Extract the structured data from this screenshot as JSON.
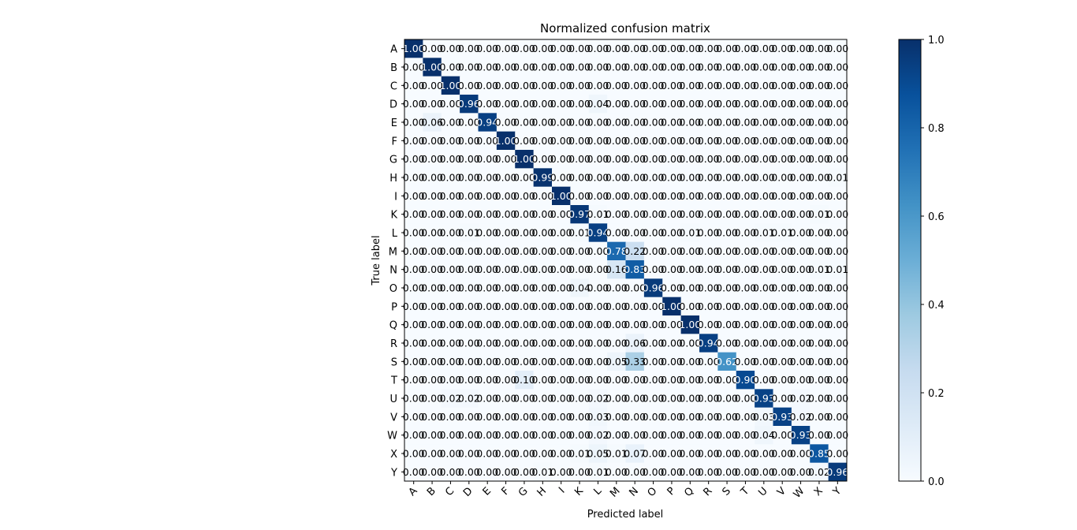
{
  "chart_data": {
    "type": "heatmap",
    "title": "Normalized confusion matrix",
    "xlabel": "Predicted label",
    "ylabel": "True label",
    "x_categories": [
      "A",
      "B",
      "C",
      "D",
      "E",
      "F",
      "G",
      "H",
      "I",
      "K",
      "L",
      "M",
      "N",
      "O",
      "P",
      "Q",
      "R",
      "S",
      "T",
      "U",
      "V",
      "W",
      "X",
      "Y"
    ],
    "y_categories": [
      "A",
      "B",
      "C",
      "D",
      "E",
      "F",
      "G",
      "H",
      "I",
      "K",
      "L",
      "M",
      "N",
      "O",
      "P",
      "Q",
      "R",
      "S",
      "T",
      "U",
      "V",
      "W",
      "X",
      "Y"
    ],
    "value_format": "0.00",
    "colorbar": {
      "min": 0.0,
      "max": 1.0,
      "ticks": [
        "0.0",
        "0.2",
        "0.4",
        "0.6",
        "0.8",
        "1.0"
      ],
      "colormap": "Blues"
    },
    "colors": {
      "low": "#f7fbff",
      "high": "#08306b",
      "text_dark": "#000000",
      "text_light": "#ffffff"
    },
    "values": [
      [
        1.0,
        0.0,
        0.0,
        0.0,
        0.0,
        0.0,
        0.0,
        0.0,
        0.0,
        0.0,
        0.0,
        0.0,
        0.0,
        0.0,
        0.0,
        0.0,
        0.0,
        0.0,
        0.0,
        0.0,
        0.0,
        0.0,
        0.0,
        0.0
      ],
      [
        0.0,
        1.0,
        0.0,
        0.0,
        0.0,
        0.0,
        0.0,
        0.0,
        0.0,
        0.0,
        0.0,
        0.0,
        0.0,
        0.0,
        0.0,
        0.0,
        0.0,
        0.0,
        0.0,
        0.0,
        0.0,
        0.0,
        0.0,
        0.0
      ],
      [
        0.0,
        0.0,
        1.0,
        0.0,
        0.0,
        0.0,
        0.0,
        0.0,
        0.0,
        0.0,
        0.0,
        0.0,
        0.0,
        0.0,
        0.0,
        0.0,
        0.0,
        0.0,
        0.0,
        0.0,
        0.0,
        0.0,
        0.0,
        0.0
      ],
      [
        0.0,
        0.0,
        0.0,
        0.96,
        0.0,
        0.0,
        0.0,
        0.0,
        0.0,
        0.0,
        0.04,
        0.0,
        0.0,
        0.0,
        0.0,
        0.0,
        0.0,
        0.0,
        0.0,
        0.0,
        0.0,
        0.0,
        0.0,
        0.0
      ],
      [
        0.0,
        0.06,
        0.0,
        0.0,
        0.94,
        0.0,
        0.0,
        0.0,
        0.0,
        0.0,
        0.0,
        0.0,
        0.0,
        0.0,
        0.0,
        0.0,
        0.0,
        0.0,
        0.0,
        0.0,
        0.0,
        0.0,
        0.0,
        0.0
      ],
      [
        0.0,
        0.0,
        0.0,
        0.0,
        0.0,
        1.0,
        0.0,
        0.0,
        0.0,
        0.0,
        0.0,
        0.0,
        0.0,
        0.0,
        0.0,
        0.0,
        0.0,
        0.0,
        0.0,
        0.0,
        0.0,
        0.0,
        0.0,
        0.0
      ],
      [
        0.0,
        0.0,
        0.0,
        0.0,
        0.0,
        0.0,
        1.0,
        0.0,
        0.0,
        0.0,
        0.0,
        0.0,
        0.0,
        0.0,
        0.0,
        0.0,
        0.0,
        0.0,
        0.0,
        0.0,
        0.0,
        0.0,
        0.0,
        0.0
      ],
      [
        0.0,
        0.0,
        0.0,
        0.0,
        0.0,
        0.0,
        0.0,
        0.99,
        0.0,
        0.0,
        0.0,
        0.0,
        0.0,
        0.0,
        0.0,
        0.0,
        0.0,
        0.0,
        0.0,
        0.0,
        0.0,
        0.0,
        0.0,
        0.01
      ],
      [
        0.0,
        0.0,
        0.0,
        0.0,
        0.0,
        0.0,
        0.0,
        0.0,
        1.0,
        0.0,
        0.0,
        0.0,
        0.0,
        0.0,
        0.0,
        0.0,
        0.0,
        0.0,
        0.0,
        0.0,
        0.0,
        0.0,
        0.0,
        0.0
      ],
      [
        0.0,
        0.0,
        0.0,
        0.0,
        0.0,
        0.0,
        0.0,
        0.0,
        0.0,
        0.97,
        0.01,
        0.0,
        0.0,
        0.0,
        0.0,
        0.0,
        0.0,
        0.0,
        0.0,
        0.0,
        0.0,
        0.0,
        0.01,
        0.0
      ],
      [
        0.0,
        0.0,
        0.0,
        0.01,
        0.0,
        0.0,
        0.0,
        0.0,
        0.0,
        0.01,
        0.94,
        0.0,
        0.0,
        0.0,
        0.0,
        0.01,
        0.0,
        0.0,
        0.0,
        0.01,
        0.01,
        0.0,
        0.0,
        0.0
      ],
      [
        0.0,
        0.0,
        0.0,
        0.0,
        0.0,
        0.0,
        0.0,
        0.0,
        0.0,
        0.0,
        0.0,
        0.78,
        0.22,
        0.0,
        0.0,
        0.0,
        0.0,
        0.0,
        0.0,
        0.0,
        0.0,
        0.0,
        0.0,
        0.0
      ],
      [
        0.0,
        0.0,
        0.0,
        0.0,
        0.0,
        0.0,
        0.0,
        0.0,
        0.0,
        0.0,
        0.0,
        0.16,
        0.83,
        0.0,
        0.0,
        0.0,
        0.0,
        0.0,
        0.0,
        0.0,
        0.0,
        0.0,
        0.01,
        0.01
      ],
      [
        0.0,
        0.0,
        0.0,
        0.0,
        0.0,
        0.0,
        0.0,
        0.0,
        0.0,
        0.04,
        0.0,
        0.0,
        0.0,
        0.96,
        0.0,
        0.0,
        0.0,
        0.0,
        0.0,
        0.0,
        0.0,
        0.0,
        0.0,
        0.0
      ],
      [
        0.0,
        0.0,
        0.0,
        0.0,
        0.0,
        0.0,
        0.0,
        0.0,
        0.0,
        0.0,
        0.0,
        0.0,
        0.0,
        0.0,
        1.0,
        0.0,
        0.0,
        0.0,
        0.0,
        0.0,
        0.0,
        0.0,
        0.0,
        0.0
      ],
      [
        0.0,
        0.0,
        0.0,
        0.0,
        0.0,
        0.0,
        0.0,
        0.0,
        0.0,
        0.0,
        0.0,
        0.0,
        0.0,
        0.0,
        0.0,
        1.0,
        0.0,
        0.0,
        0.0,
        0.0,
        0.0,
        0.0,
        0.0,
        0.0
      ],
      [
        0.0,
        0.0,
        0.0,
        0.0,
        0.0,
        0.0,
        0.0,
        0.0,
        0.0,
        0.0,
        0.0,
        0.0,
        0.06,
        0.0,
        0.0,
        0.0,
        0.94,
        0.0,
        0.0,
        0.0,
        0.0,
        0.0,
        0.0,
        0.0
      ],
      [
        0.0,
        0.0,
        0.0,
        0.0,
        0.0,
        0.0,
        0.0,
        0.0,
        0.0,
        0.0,
        0.0,
        0.05,
        0.33,
        0.0,
        0.0,
        0.0,
        0.0,
        0.62,
        0.0,
        0.0,
        0.0,
        0.0,
        0.0,
        0.0
      ],
      [
        0.0,
        0.0,
        0.0,
        0.0,
        0.0,
        0.0,
        0.1,
        0.0,
        0.0,
        0.0,
        0.0,
        0.0,
        0.0,
        0.0,
        0.0,
        0.0,
        0.0,
        0.0,
        0.9,
        0.0,
        0.0,
        0.0,
        0.0,
        0.0
      ],
      [
        0.0,
        0.0,
        0.02,
        0.02,
        0.0,
        0.0,
        0.0,
        0.0,
        0.0,
        0.0,
        0.02,
        0.0,
        0.0,
        0.0,
        0.0,
        0.0,
        0.0,
        0.0,
        0.0,
        0.93,
        0.0,
        0.02,
        0.0,
        0.0
      ],
      [
        0.0,
        0.0,
        0.0,
        0.0,
        0.0,
        0.0,
        0.0,
        0.0,
        0.0,
        0.0,
        0.03,
        0.0,
        0.0,
        0.0,
        0.0,
        0.0,
        0.0,
        0.0,
        0.0,
        0.03,
        0.93,
        0.02,
        0.0,
        0.0
      ],
      [
        0.0,
        0.0,
        0.0,
        0.0,
        0.0,
        0.0,
        0.0,
        0.0,
        0.0,
        0.0,
        0.02,
        0.0,
        0.0,
        0.0,
        0.0,
        0.0,
        0.0,
        0.0,
        0.0,
        0.04,
        0.0,
        0.93,
        0.0,
        0.0
      ],
      [
        0.0,
        0.0,
        0.0,
        0.0,
        0.0,
        0.0,
        0.0,
        0.0,
        0.0,
        0.01,
        0.05,
        0.01,
        0.07,
        0.0,
        0.0,
        0.0,
        0.0,
        0.0,
        0.0,
        0.0,
        0.0,
        0.0,
        0.85,
        0.0
      ],
      [
        0.0,
        0.0,
        0.0,
        0.0,
        0.0,
        0.0,
        0.0,
        0.01,
        0.0,
        0.0,
        0.01,
        0.0,
        0.0,
        0.0,
        0.0,
        0.0,
        0.0,
        0.0,
        0.0,
        0.0,
        0.0,
        0.0,
        0.02,
        0.96
      ]
    ]
  }
}
